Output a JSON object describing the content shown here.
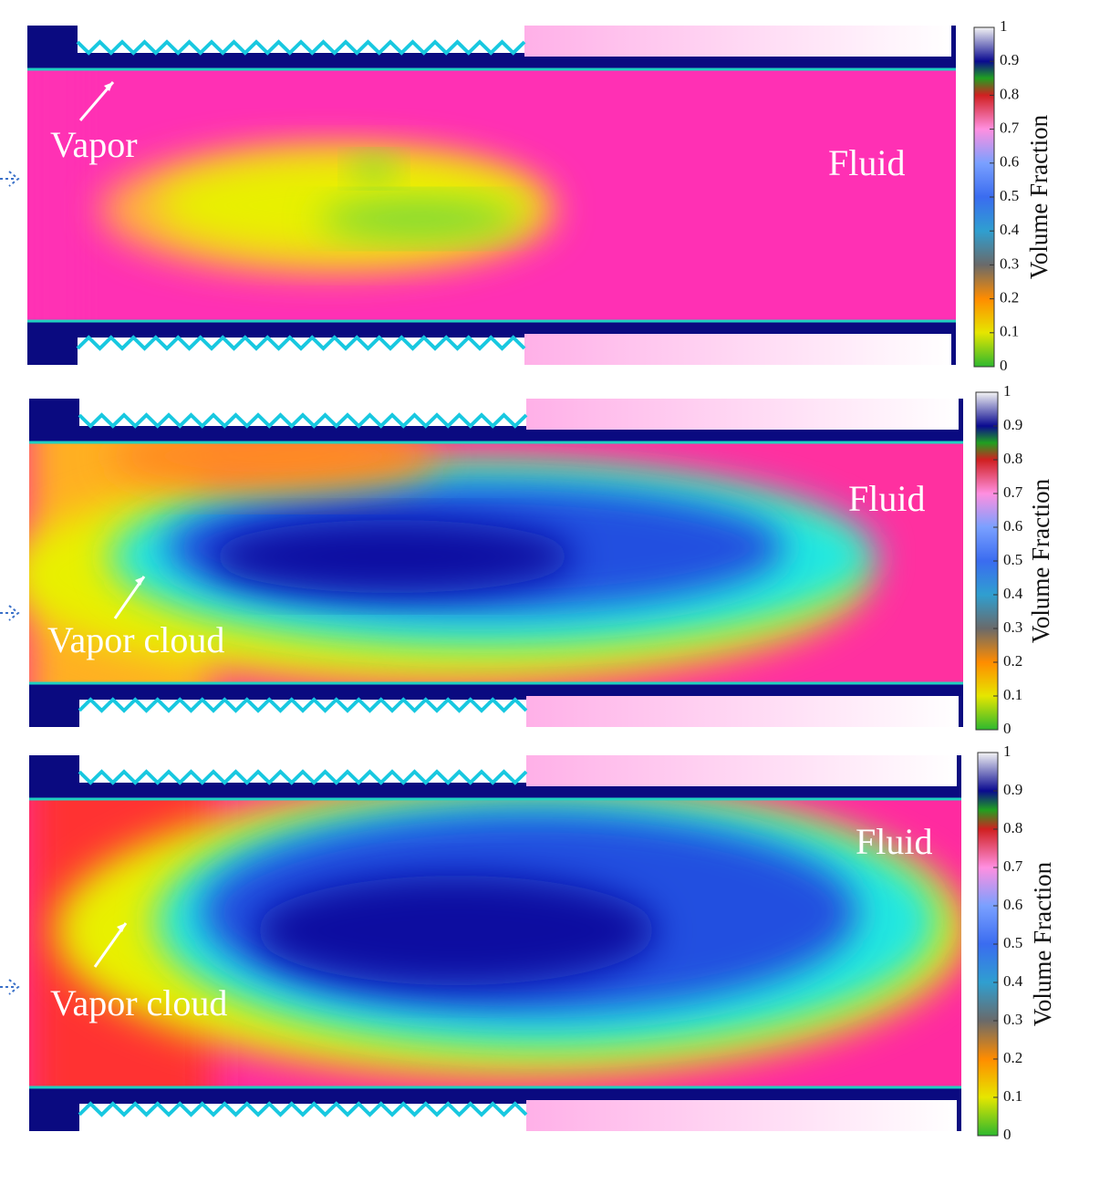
{
  "panels": [
    {
      "labels": [
        "Vapor",
        "Fluid"
      ],
      "colorbar": {
        "title": "Volume Fraction",
        "ticks": [
          1,
          0.9,
          0.8,
          0.7,
          0.6,
          0.5,
          0.4,
          0.3,
          0.2,
          0.1,
          0
        ]
      }
    },
    {
      "labels": [
        "Vapor cloud",
        "Fluid"
      ],
      "colorbar": {
        "title": "Volume Fraction",
        "ticks": [
          1,
          0.9,
          0.8,
          0.7,
          0.6,
          0.5,
          0.4,
          0.3,
          0.2,
          0.1,
          0
        ]
      }
    },
    {
      "labels": [
        "Vapor cloud",
        "Fluid"
      ],
      "colorbar": {
        "title": "Volume Fraction",
        "ticks": [
          1,
          0.9,
          0.8,
          0.7,
          0.6,
          0.5,
          0.4,
          0.3,
          0.2,
          0.1,
          0
        ]
      }
    }
  ]
}
